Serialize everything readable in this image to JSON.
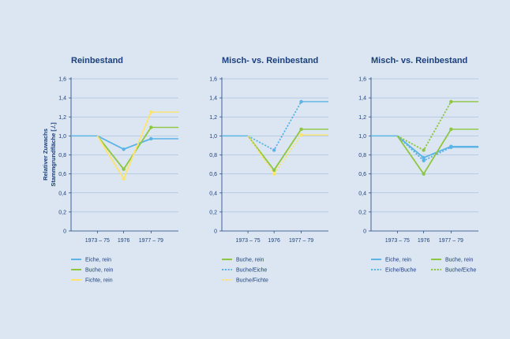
{
  "colors": {
    "background": "#dce6f2",
    "text": "#1a3f7a",
    "axis": "#1a3f7a",
    "grid": "#8fb1d6",
    "eiche": "#5bb4e5",
    "buche": "#8dc63f",
    "fichte": "#fde36b"
  },
  "ylabel_lines": [
    "Relativer Zuwachs",
    "Stammgrundfläche [./.]"
  ],
  "chart_data": [
    {
      "type": "line",
      "title": "Reinbestand",
      "categories": [
        "1973 – 75",
        "1976",
        "1977 – 79"
      ],
      "ylim": [
        0,
        1.6
      ],
      "yticks": [
        "0",
        "0,2",
        "0,4",
        "0,6",
        "0,8",
        "1,0",
        "1,2",
        "1,4",
        "1,6"
      ],
      "grid": true,
      "legend_position": "bottom",
      "series": [
        {
          "name": "Eiche, rein",
          "values": [
            1.0,
            0.86,
            0.97
          ],
          "color": "#5bb4e5",
          "dash": false
        },
        {
          "name": "Buche, rein",
          "values": [
            1.0,
            0.65,
            1.09
          ],
          "color": "#8dc63f",
          "dash": false
        },
        {
          "name": "Fichte, rein",
          "values": [
            1.0,
            0.55,
            1.25
          ],
          "color": "#fde36b",
          "dash": false
        }
      ]
    },
    {
      "type": "line",
      "title": "Misch- vs. Reinbestand",
      "categories": [
        "1973 – 75",
        "1976",
        "1977 – 79"
      ],
      "ylim": [
        0,
        1.6
      ],
      "yticks": [
        "0",
        "0,2",
        "0,4",
        "0,6",
        "0,8",
        "1,0",
        "1,2",
        "1,4",
        "1,6"
      ],
      "grid": true,
      "legend_position": "bottom",
      "series": [
        {
          "name": "Buche, rein",
          "values": [
            1.0,
            0.64,
            1.07
          ],
          "color": "#8dc63f",
          "dash": false
        },
        {
          "name": "Buche/Eiche",
          "values": [
            1.0,
            0.85,
            1.36
          ],
          "color": "#5bb4e5",
          "dash": true
        },
        {
          "name": "Buche/Fichte",
          "values": [
            1.0,
            0.6,
            1.01
          ],
          "color": "#fde36b",
          "dash": true
        }
      ]
    },
    {
      "type": "line",
      "title": "Misch- vs. Reinbestand",
      "categories": [
        "1973 – 75",
        "1976",
        "1977 – 79"
      ],
      "ylim": [
        0,
        1.6
      ],
      "yticks": [
        "0",
        "0,2",
        "0,4",
        "0,6",
        "0,8",
        "1,0",
        "1,2",
        "1,4",
        "1,6"
      ],
      "grid": true,
      "legend_position": "bottom",
      "series": [
        {
          "name": "Eiche, rein",
          "values": [
            1.0,
            0.77,
            0.89
          ],
          "color": "#5bb4e5",
          "dash": false
        },
        {
          "name": "Eiche/Buche",
          "values": [
            1.0,
            0.74,
            0.88
          ],
          "color": "#5bb4e5",
          "dash": true
        },
        {
          "name": "Buche, rein",
          "values": [
            1.0,
            0.6,
            1.07
          ],
          "color": "#8dc63f",
          "dash": false
        },
        {
          "name": "Buche/Eiche",
          "values": [
            1.0,
            0.85,
            1.36
          ],
          "color": "#8dc63f",
          "dash": true
        }
      ]
    }
  ]
}
